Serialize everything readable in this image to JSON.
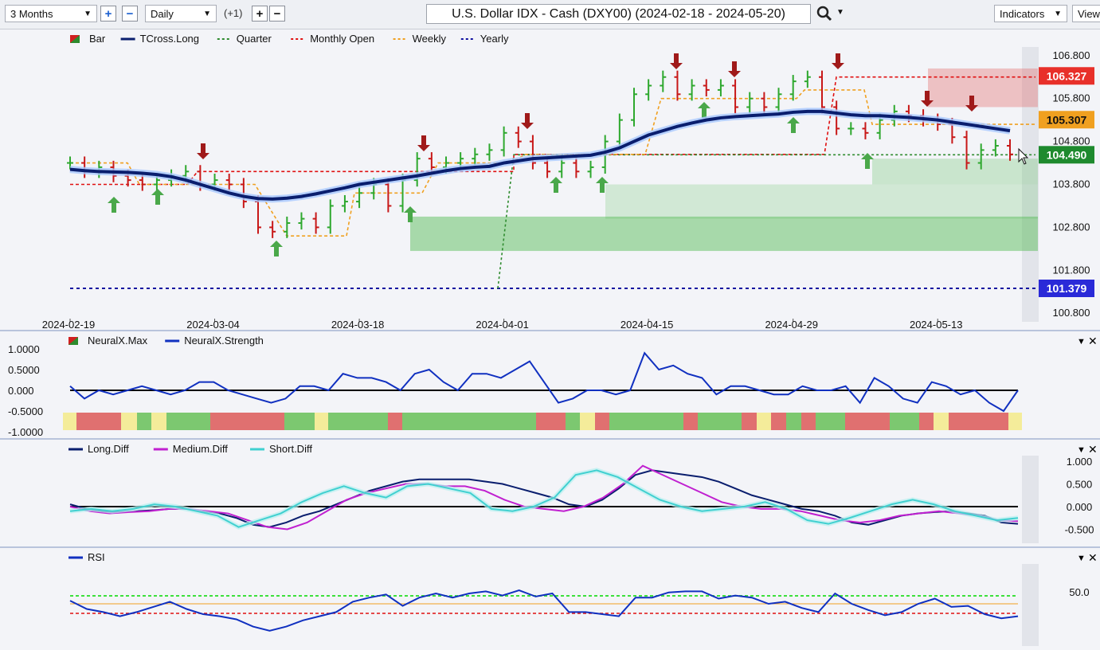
{
  "toolbar": {
    "period": "3 Months",
    "interval": "Daily",
    "offset": "(+1)",
    "title": "U.S. Dollar IDX - Cash (DXY00) (2024-02-18 - 2024-05-20)",
    "indicators_label": "Indicators",
    "view_label": "View"
  },
  "main": {
    "legend": [
      {
        "label": "Bar",
        "color": "#2e8b2e"
      },
      {
        "label": "TCross.Long",
        "color": "#0a1e6e"
      },
      {
        "label": "Quarter",
        "color": "#2e8b2e"
      },
      {
        "label": "Monthly Open",
        "color": "#e01010"
      },
      {
        "label": "Weekly",
        "color": "#f0a020"
      },
      {
        "label": "Yearly",
        "color": "#1010a0"
      }
    ],
    "y_ticks": [
      "106.800",
      "105.800",
      "104.800",
      "103.800",
      "102.800",
      "101.800",
      "100.800"
    ],
    "x_ticks": [
      "2024-02-19",
      "2024-03-04",
      "2024-03-18",
      "2024-04-01",
      "2024-04-15",
      "2024-04-29",
      "2024-05-13"
    ],
    "price_tags": [
      {
        "value": "106.327",
        "color": "#e8302a"
      },
      {
        "value": "105.307",
        "color": "#f0a020"
      },
      {
        "value": "104.490",
        "color": "#1e8a2e"
      },
      {
        "value": "101.379",
        "color": "#2a2ad8"
      }
    ]
  },
  "neural": {
    "legend": [
      {
        "label": "NeuralX.Max",
        "color": "#2e8b2e"
      },
      {
        "label": "NeuralX.Strength",
        "color": "#1030c0"
      }
    ],
    "y_ticks": [
      "1.0000",
      "0.5000",
      "0.000",
      "-0.5000",
      "-1.0000"
    ]
  },
  "diff": {
    "legend": [
      {
        "label": "Long.Diff",
        "color": "#0a1e6e"
      },
      {
        "label": "Medium.Diff",
        "color": "#c020d0"
      },
      {
        "label": "Short.Diff",
        "color": "#40d0d0"
      }
    ],
    "y_ticks": [
      "1.000",
      "0.500",
      "0.000",
      "-0.500"
    ]
  },
  "rsi": {
    "legend": [
      {
        "label": "RSI",
        "color": "#1030c0"
      }
    ],
    "y_ticks": [
      "50.0"
    ]
  },
  "chart_data": [
    {
      "type": "bar",
      "title": "U.S. Dollar IDX - Cash (DXY00) (2024-02-18 - 2024-05-20)",
      "ylim": [
        100.6,
        107.0
      ],
      "levels": {
        "monthly_open": 106.327,
        "weekly": 105.307,
        "quarter": 104.49,
        "yearly": 101.379
      },
      "x": [
        "2024-02-19",
        "2024-02-20",
        "2024-02-21",
        "2024-02-22",
        "2024-02-23",
        "2024-02-26",
        "2024-02-27",
        "2024-02-28",
        "2024-02-29",
        "2024-03-01",
        "2024-03-04",
        "2024-03-05",
        "2024-03-06",
        "2024-03-07",
        "2024-03-08",
        "2024-03-11",
        "2024-03-12",
        "2024-03-13",
        "2024-03-14",
        "2024-03-15",
        "2024-03-18",
        "2024-03-19",
        "2024-03-20",
        "2024-03-21",
        "2024-03-22",
        "2024-03-25",
        "2024-03-26",
        "2024-03-27",
        "2024-03-28",
        "2024-03-29",
        "2024-04-01",
        "2024-04-02",
        "2024-04-03",
        "2024-04-04",
        "2024-04-05",
        "2024-04-08",
        "2024-04-09",
        "2024-04-10",
        "2024-04-11",
        "2024-04-12",
        "2024-04-15",
        "2024-04-16",
        "2024-04-17",
        "2024-04-18",
        "2024-04-19",
        "2024-04-22",
        "2024-04-23",
        "2024-04-24",
        "2024-04-25",
        "2024-04-26",
        "2024-04-29",
        "2024-04-30",
        "2024-05-01",
        "2024-05-02",
        "2024-05-03",
        "2024-05-06",
        "2024-05-07",
        "2024-05-08",
        "2024-05-09",
        "2024-05-10",
        "2024-05-13",
        "2024-05-14",
        "2024-05-15",
        "2024-05-16",
        "2024-05-17",
        "2024-05-20"
      ],
      "close": [
        104.3,
        104.1,
        104.2,
        104.0,
        103.9,
        103.8,
        103.9,
        104.0,
        104.1,
        103.8,
        103.9,
        103.8,
        103.4,
        102.8,
        102.7,
        102.9,
        103.0,
        102.8,
        103.3,
        103.4,
        103.6,
        103.8,
        103.3,
        103.9,
        104.4,
        104.2,
        104.3,
        104.4,
        104.5,
        104.6,
        105.0,
        104.8,
        104.3,
        104.1,
        104.3,
        104.1,
        104.2,
        104.8,
        105.3,
        105.9,
        106.1,
        106.3,
        105.9,
        106.1,
        106.0,
        106.1,
        105.6,
        105.8,
        105.6,
        105.9,
        106.2,
        106.3,
        105.6,
        105.1,
        105.1,
        105.0,
        105.3,
        105.5,
        105.4,
        105.3,
        105.2,
        104.9,
        104.3,
        104.6,
        104.7,
        104.5
      ],
      "tcross_long": [
        104.15,
        104.12,
        104.1,
        104.09,
        104.08,
        104.06,
        104.03,
        103.98,
        103.9,
        103.8,
        103.7,
        103.6,
        103.52,
        103.47,
        103.46,
        103.48,
        103.52,
        103.58,
        103.65,
        103.72,
        103.8,
        103.85,
        103.9,
        103.95,
        104.0,
        104.06,
        104.12,
        104.17,
        104.2,
        104.22,
        104.3,
        104.35,
        104.4,
        104.42,
        104.44,
        104.46,
        104.48,
        104.55,
        104.65,
        104.8,
        104.95,
        105.05,
        105.15,
        105.23,
        105.3,
        105.35,
        105.38,
        105.4,
        105.42,
        105.44,
        105.48,
        105.5,
        105.5,
        105.46,
        105.42,
        105.4,
        105.4,
        105.38,
        105.36,
        105.33,
        105.3,
        105.25,
        105.2,
        105.15,
        105.1,
        105.05
      ]
    },
    {
      "type": "line",
      "series": [
        {
          "name": "NeuralX.Strength",
          "values": [
            0.1,
            -0.2,
            0.0,
            -0.1,
            0.0,
            0.1,
            0.0,
            -0.1,
            0.0,
            0.2,
            0.2,
            0.0,
            -0.1,
            -0.2,
            -0.3,
            -0.2,
            0.1,
            0.1,
            0.0,
            0.4,
            0.3,
            0.3,
            0.2,
            0.0,
            0.4,
            0.5,
            0.2,
            0.0,
            0.4,
            0.4,
            0.3,
            0.5,
            0.7,
            0.2,
            -0.3,
            -0.2,
            0.0,
            0.0,
            -0.1,
            0.0,
            0.9,
            0.5,
            0.6,
            0.4,
            0.3,
            -0.1,
            0.1,
            0.1,
            0.0,
            -0.1,
            -0.1,
            0.1,
            0.0,
            0.0,
            0.1,
            -0.3,
            0.3,
            0.1,
            -0.2,
            -0.3,
            0.2,
            0.1,
            -0.1,
            0.0,
            -0.3,
            -0.5,
            0.0
          ]
        }
      ],
      "ylim": [
        -1.0,
        1.0
      ]
    },
    {
      "type": "line",
      "series": [
        {
          "name": "Long.Diff",
          "values": [
            0.05,
            -0.05,
            -0.1,
            -0.12,
            -0.1,
            -0.08,
            -0.05,
            -0.05,
            -0.1,
            -0.15,
            -0.25,
            -0.4,
            -0.45,
            -0.35,
            -0.2,
            -0.1,
            0.05,
            0.2,
            0.35,
            0.45,
            0.55,
            0.6,
            0.6,
            0.6,
            0.6,
            0.55,
            0.5,
            0.4,
            0.3,
            0.2,
            0.05,
            0.0,
            0.15,
            0.4,
            0.7,
            0.8,
            0.75,
            0.7,
            0.65,
            0.55,
            0.4,
            0.25,
            0.15,
            0.05,
            -0.05,
            -0.1,
            -0.2,
            -0.35,
            -0.4,
            -0.3,
            -0.2,
            -0.15,
            -0.12,
            -0.1,
            -0.15,
            -0.2,
            -0.35,
            -0.38
          ]
        },
        {
          "name": "Medium.Diff",
          "values": [
            0.0,
            -0.1,
            -0.15,
            -0.12,
            -0.1,
            -0.05,
            -0.05,
            -0.1,
            -0.15,
            -0.3,
            -0.45,
            -0.5,
            -0.35,
            -0.1,
            0.15,
            0.3,
            0.4,
            0.5,
            0.5,
            0.45,
            0.45,
            0.35,
            0.15,
            0.0,
            -0.05,
            -0.1,
            0.0,
            0.2,
            0.5,
            0.9,
            0.7,
            0.5,
            0.3,
            0.1,
            0.0,
            -0.05,
            -0.05,
            -0.1,
            -0.2,
            -0.3,
            -0.35,
            -0.3,
            -0.2,
            -0.15,
            -0.1,
            -0.15,
            -0.2,
            -0.3,
            -0.32
          ]
        },
        {
          "name": "Short.Diff",
          "values": [
            -0.1,
            -0.05,
            -0.1,
            -0.05,
            0.05,
            0.0,
            -0.1,
            -0.2,
            -0.45,
            -0.3,
            -0.15,
            0.1,
            0.3,
            0.45,
            0.3,
            0.2,
            0.45,
            0.5,
            0.4,
            0.3,
            -0.05,
            -0.1,
            0.0,
            0.2,
            0.7,
            0.8,
            0.65,
            0.4,
            0.15,
            0.0,
            -0.1,
            -0.05,
            0.0,
            0.1,
            -0.05,
            -0.3,
            -0.38,
            -0.25,
            -0.1,
            0.05,
            0.15,
            0.05,
            -0.1,
            -0.2,
            -0.3,
            -0.25
          ]
        }
      ],
      "ylim": [
        -0.6,
        1.1
      ]
    },
    {
      "type": "line",
      "series": [
        {
          "name": "RSI",
          "values": [
            53,
            45,
            42,
            38,
            42,
            47,
            52,
            45,
            40,
            38,
            35,
            28,
            24,
            28,
            34,
            38,
            42,
            52,
            56,
            59,
            48,
            56,
            60,
            56,
            60,
            62,
            58,
            63,
            57,
            60,
            42,
            42,
            40,
            38,
            56,
            56,
            61,
            62,
            62,
            55,
            58,
            56,
            50,
            52,
            46,
            42,
            60,
            50,
            44,
            39,
            42,
            50,
            55,
            47,
            48,
            40,
            36,
            38
          ]
        }
      ],
      "reference_lines": [
        {
          "value": 50.0,
          "label": "50.0"
        }
      ]
    }
  ]
}
